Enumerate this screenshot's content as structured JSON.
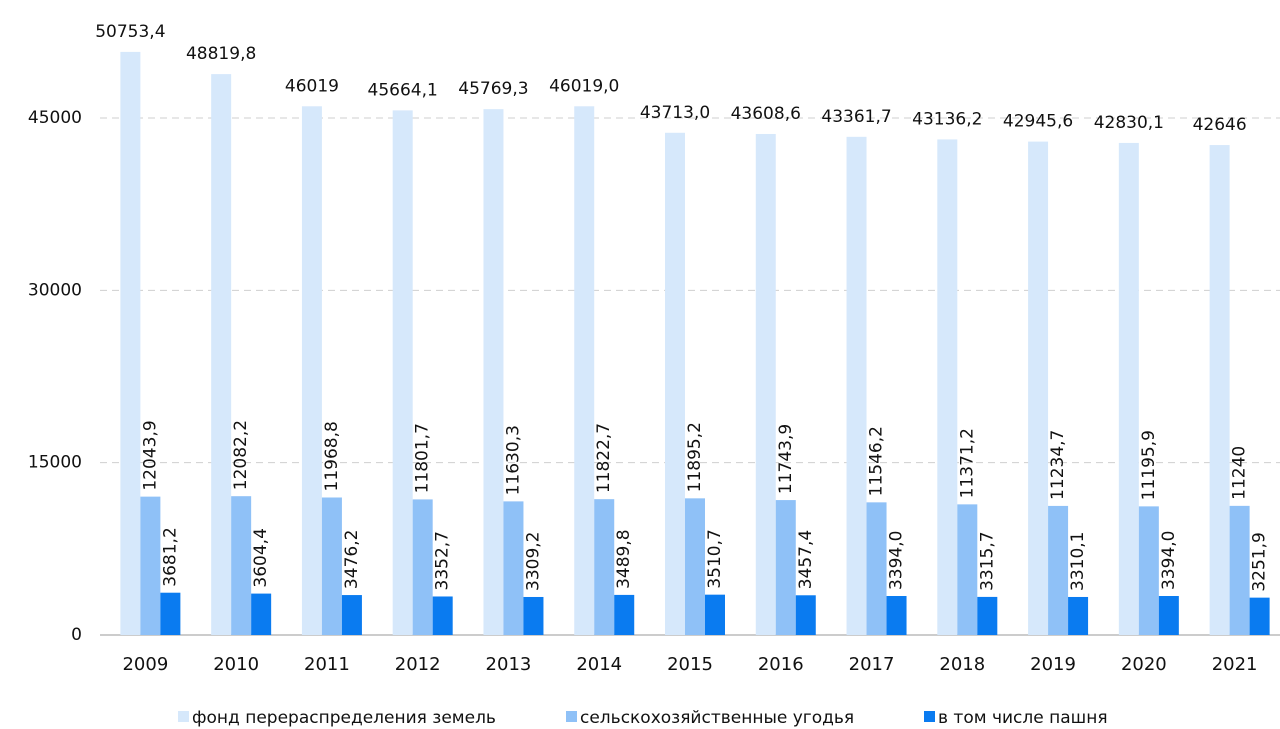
{
  "chart_data": {
    "type": "bar",
    "categories": [
      "2009",
      "2010",
      "2011",
      "2012",
      "2013",
      "2014",
      "2015",
      "2016",
      "2017",
      "2018",
      "2019",
      "2020",
      "2021"
    ],
    "series": [
      {
        "name": "фонд перераспределения земель",
        "color": "#d6e8fb",
        "values": [
          50753.4,
          48819.8,
          46019,
          45664.1,
          45769.3,
          46019.0,
          43713.0,
          43608.6,
          43361.7,
          43136.2,
          42945.6,
          42830.1,
          42646
        ],
        "value_labels": [
          "50753,4",
          "48819,8",
          "46019",
          "45664,1",
          "45769,3",
          "46019,0",
          "43713,0",
          "43608,6",
          "43361,7",
          "43136,2",
          "42945,6",
          "42830,1",
          "42646"
        ]
      },
      {
        "name": "сельскохозяйственные угодья",
        "color": "#8fc1f7",
        "values": [
          12043.9,
          12082.2,
          11968.8,
          11801.7,
          11630.3,
          11822.7,
          11895.2,
          11743.9,
          11546.2,
          11371.2,
          11234.7,
          11195.9,
          11240
        ],
        "value_labels": [
          "12043,9",
          "12082,2",
          "11968,8",
          "11801,7",
          "11630,3",
          "11822,7",
          "11895,2",
          "11743,9",
          "11546,2",
          "11371,2",
          "11234,7",
          "11195,9",
          "11240"
        ]
      },
      {
        "name": "в том числе пашня",
        "color": "#0a7bf0",
        "values": [
          3681.2,
          3604.4,
          3476.2,
          3352.7,
          3309.2,
          3489.8,
          3510.7,
          3457.4,
          3394.0,
          3315.7,
          3310.1,
          3394.0,
          3251.9
        ],
        "value_labels": [
          "3681,2",
          "3604,4",
          "3476,2",
          "3352,7",
          "3309,2",
          "3489,8",
          "3510,7",
          "3457,4",
          "3394,0",
          "3315,7",
          "3310,1",
          "3394,0",
          "3251,9"
        ]
      }
    ],
    "ylim": [
      0,
      54000
    ],
    "yticks": [
      0,
      15000,
      30000,
      45000
    ],
    "grid": true,
    "legend": "bottom"
  }
}
